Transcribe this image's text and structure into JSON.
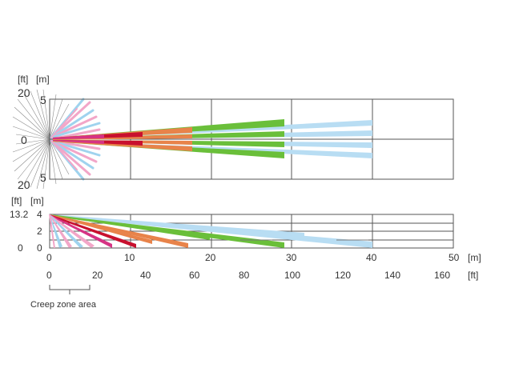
{
  "top_view": {
    "unit_ft": "[ft]",
    "unit_m": "[m]",
    "y_ft_top": "20",
    "y_m_top": "5",
    "y_zero": "0",
    "y_ft_bottom": "20",
    "y_m_bottom": "5"
  },
  "side_view": {
    "unit_ft": "[ft]",
    "unit_m": "[m]",
    "height_ft": "13.2",
    "y_m_ticks": [
      "4",
      "2",
      "0"
    ],
    "y_zero_ft": "0"
  },
  "x_axis_m": {
    "ticks": [
      "0",
      "10",
      "20",
      "30",
      "40",
      "50"
    ],
    "unit": "[m]"
  },
  "x_axis_ft": {
    "ticks": [
      "0",
      "20",
      "40",
      "60",
      "80",
      "100",
      "120",
      "140",
      "160"
    ],
    "unit": "[ft]"
  },
  "creep_zone": {
    "label": "Creep zone area"
  },
  "colors": {
    "grid": "#555555",
    "creep_pink": "#f2a6c8",
    "creep_blue": "#9fd3ee",
    "magenta": "#d63384",
    "red": "#c8102e",
    "orange": "#e8834a",
    "green": "#6abf3a",
    "light_blue": "#b8ddf3",
    "fan_lines": "#777777"
  }
}
